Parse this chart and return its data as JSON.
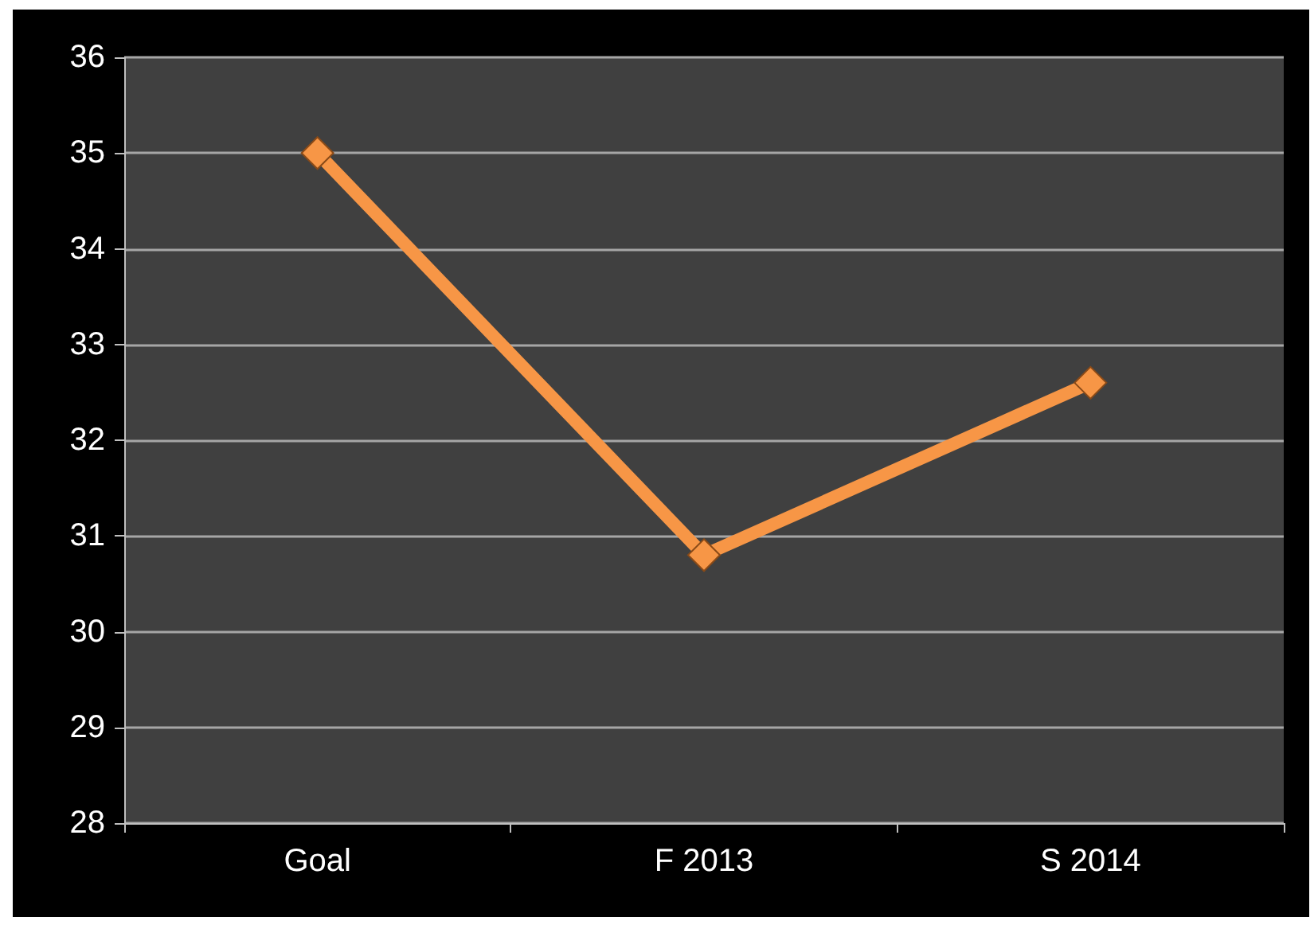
{
  "chart_data": {
    "type": "line",
    "categories": [
      "Goal",
      "F 2013",
      "S 2014"
    ],
    "series": [
      {
        "color": "#f79646",
        "values": [
          35,
          30.8,
          32.6
        ]
      }
    ],
    "ylim": [
      28,
      36
    ],
    "yticks": [
      28,
      29,
      30,
      31,
      32,
      33,
      34,
      35,
      36
    ],
    "grid": "y",
    "marker": "diamond",
    "line_style": "solid"
  }
}
